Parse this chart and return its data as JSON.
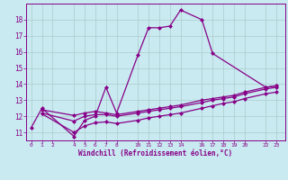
{
  "xlabel": "Windchill (Refroidissement éolien,°C)",
  "background_color": "#c8eaf0",
  "line_color": "#880088",
  "grid_color": "#aacccc",
  "xlim": [
    -0.5,
    23.8
  ],
  "ylim": [
    10.5,
    19.0
  ],
  "xticks": [
    0,
    1,
    2,
    4,
    5,
    6,
    7,
    8,
    10,
    11,
    12,
    13,
    14,
    16,
    17,
    18,
    19,
    20,
    22,
    23
  ],
  "yticks": [
    11,
    12,
    13,
    14,
    15,
    16,
    17,
    18
  ],
  "curves": [
    {
      "x": [
        0,
        1,
        4,
        5,
        6,
        7,
        8,
        10,
        11,
        12,
        13,
        14,
        16,
        17,
        22,
        23
      ],
      "y": [
        11.3,
        12.5,
        10.75,
        11.75,
        12.0,
        13.8,
        12.2,
        15.8,
        17.5,
        17.5,
        17.6,
        18.6,
        18.0,
        15.9,
        13.8,
        13.9
      ]
    },
    {
      "x": [
        1,
        4,
        5,
        6,
        7,
        8,
        10,
        11,
        12,
        13,
        14,
        16,
        17,
        18,
        19,
        20,
        22,
        23
      ],
      "y": [
        12.4,
        12.05,
        12.2,
        12.3,
        12.2,
        12.1,
        12.3,
        12.4,
        12.5,
        12.6,
        12.7,
        13.0,
        13.1,
        13.2,
        13.3,
        13.5,
        13.8,
        13.9
      ]
    },
    {
      "x": [
        1,
        4,
        5,
        6,
        7,
        8,
        10,
        11,
        12,
        13,
        14,
        16,
        17,
        18,
        19,
        20,
        22,
        23
      ],
      "y": [
        12.2,
        11.7,
        12.0,
        12.1,
        12.1,
        12.0,
        12.2,
        12.3,
        12.4,
        12.5,
        12.6,
        12.85,
        13.0,
        13.1,
        13.2,
        13.4,
        13.7,
        13.8
      ]
    },
    {
      "x": [
        1,
        4,
        5,
        6,
        7,
        8,
        10,
        11,
        12,
        13,
        14,
        16,
        17,
        18,
        19,
        20,
        22,
        23
      ],
      "y": [
        12.15,
        11.0,
        11.4,
        11.6,
        11.65,
        11.55,
        11.75,
        11.9,
        12.0,
        12.1,
        12.2,
        12.5,
        12.65,
        12.8,
        12.9,
        13.1,
        13.4,
        13.5
      ]
    }
  ],
  "marker": "D",
  "markersize": 2.0,
  "linewidth": 0.9
}
